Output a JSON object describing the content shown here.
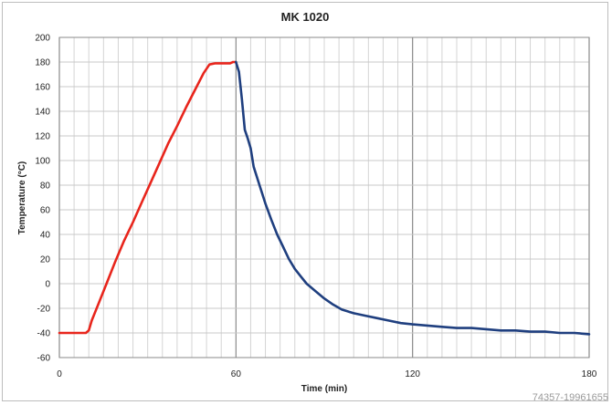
{
  "chart_data": {
    "type": "line",
    "title": "MK 1020",
    "xlabel": "Time (min)",
    "ylabel": "Temperature (°C)",
    "xlim": [
      0,
      180
    ],
    "ylim": [
      -60,
      200
    ],
    "xticks": [
      0,
      60,
      120,
      180
    ],
    "yticks": [
      -60,
      -40,
      -20,
      0,
      20,
      40,
      60,
      80,
      100,
      120,
      140,
      160,
      180,
      200
    ],
    "grid": true,
    "legend": "none",
    "series": [
      {
        "color": "#e8251c",
        "points": [
          [
            0,
            -40
          ],
          [
            9,
            -40
          ],
          [
            10,
            -38
          ],
          [
            11,
            -30
          ],
          [
            13,
            -18
          ],
          [
            16,
            0
          ],
          [
            19,
            18
          ],
          [
            22,
            35
          ],
          [
            25,
            50
          ],
          [
            28,
            66
          ],
          [
            31,
            82
          ],
          [
            34,
            98
          ],
          [
            37,
            114
          ],
          [
            40,
            128
          ],
          [
            43,
            143
          ],
          [
            46,
            157
          ],
          [
            49,
            171
          ],
          [
            51,
            178
          ],
          [
            53,
            179
          ],
          [
            58,
            179
          ],
          [
            59,
            180
          ],
          [
            60,
            180
          ]
        ]
      },
      {
        "color": "#1f3f7f",
        "points": [
          [
            60,
            180
          ],
          [
            61,
            172
          ],
          [
            62,
            150
          ],
          [
            63,
            125
          ],
          [
            64,
            118
          ],
          [
            65,
            110
          ],
          [
            66,
            95
          ],
          [
            68,
            80
          ],
          [
            70,
            65
          ],
          [
            72,
            52
          ],
          [
            74,
            40
          ],
          [
            76,
            30
          ],
          [
            78,
            20
          ],
          [
            80,
            12
          ],
          [
            82,
            6
          ],
          [
            84,
            0
          ],
          [
            87,
            -6
          ],
          [
            90,
            -12
          ],
          [
            93,
            -17
          ],
          [
            96,
            -21
          ],
          [
            100,
            -24
          ],
          [
            104,
            -26
          ],
          [
            108,
            -28
          ],
          [
            112,
            -30
          ],
          [
            116,
            -32
          ],
          [
            120,
            -33
          ],
          [
            125,
            -34
          ],
          [
            130,
            -35
          ],
          [
            135,
            -36
          ],
          [
            140,
            -36
          ],
          [
            145,
            -37
          ],
          [
            150,
            -38
          ],
          [
            155,
            -38
          ],
          [
            160,
            -39
          ],
          [
            165,
            -39
          ],
          [
            170,
            -40
          ],
          [
            175,
            -40
          ],
          [
            180,
            -41
          ]
        ]
      }
    ]
  },
  "watermark": "74357-19961655"
}
